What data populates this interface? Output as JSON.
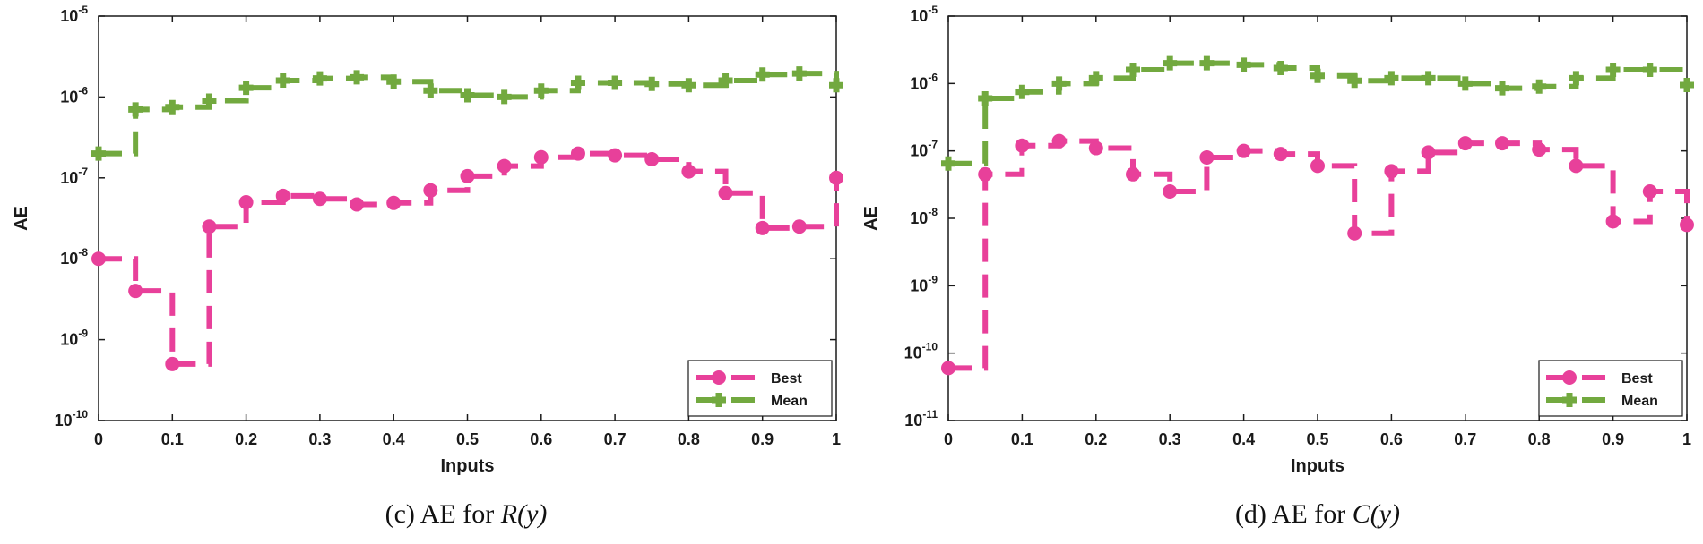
{
  "colors": {
    "best": "#e8409a",
    "mean": "#72a93f",
    "axis": "#1a1a1a"
  },
  "chart_data": [
    {
      "type": "line",
      "title": "",
      "caption_prefix": "(c)  AE for ",
      "caption_var": "R(y)",
      "xlabel": "Inputs",
      "ylabel": "AE",
      "yscale": "log",
      "xlim": [
        0,
        1
      ],
      "ylim_exp": [
        -10,
        -5
      ],
      "x_ticks": [
        "0",
        "0.1",
        "0.2",
        "0.3",
        "0.4",
        "0.5",
        "0.6",
        "0.7",
        "0.8",
        "0.9",
        "1"
      ],
      "y_tick_base": "10",
      "y_tick_exponents": [
        "-10",
        "-9",
        "-8",
        "-7",
        "-6",
        "-5"
      ],
      "legend": {
        "position": "bottom-right",
        "entries": [
          "Best",
          "Mean"
        ]
      },
      "x": [
        0,
        0.05,
        0.1,
        0.15,
        0.2,
        0.25,
        0.3,
        0.35,
        0.4,
        0.45,
        0.5,
        0.55,
        0.6,
        0.65,
        0.7,
        0.75,
        0.8,
        0.85,
        0.9,
        0.95,
        1
      ],
      "series": [
        {
          "name": "Best",
          "values": [
            1e-08,
            4e-09,
            5e-10,
            2.5e-08,
            5e-08,
            6e-08,
            5.5e-08,
            4.7e-08,
            4.9e-08,
            7e-08,
            1.05e-07,
            1.4e-07,
            1.8e-07,
            2e-07,
            1.9e-07,
            1.7e-07,
            1.2e-07,
            6.5e-08,
            2.4e-08,
            2.5e-08,
            1e-07
          ]
        },
        {
          "name": "Mean",
          "values": [
            2e-07,
            7e-07,
            7.5e-07,
            9e-07,
            1.3e-06,
            1.6e-06,
            1.7e-06,
            1.75e-06,
            1.55e-06,
            1.2e-06,
            1.05e-06,
            1e-06,
            1.2e-06,
            1.5e-06,
            1.5e-06,
            1.45e-06,
            1.4e-06,
            1.6e-06,
            1.9e-06,
            1.95e-06,
            1.4e-06
          ]
        }
      ]
    },
    {
      "type": "line",
      "title": "",
      "caption_prefix": "(d) AE for ",
      "caption_var": "C(y)",
      "xlabel": "Inputs",
      "ylabel": "AE",
      "yscale": "log",
      "xlim": [
        0,
        1
      ],
      "ylim_exp": [
        -11,
        -5
      ],
      "x_ticks": [
        "0",
        "0.1",
        "0.2",
        "0.3",
        "0.4",
        "0.5",
        "0.6",
        "0.7",
        "0.8",
        "0.9",
        "1"
      ],
      "y_tick_base": "10",
      "y_tick_exponents": [
        "-11",
        "-10",
        "-9",
        "-8",
        "-7",
        "-6",
        "-5"
      ],
      "legend": {
        "position": "bottom-right",
        "entries": [
          "Best",
          "Mean"
        ]
      },
      "x": [
        0,
        0.05,
        0.1,
        0.15,
        0.2,
        0.25,
        0.3,
        0.35,
        0.4,
        0.45,
        0.5,
        0.55,
        0.6,
        0.65,
        0.7,
        0.75,
        0.8,
        0.85,
        0.9,
        0.95,
        1
      ],
      "series": [
        {
          "name": "Best",
          "values": [
            6e-11,
            4.5e-08,
            1.2e-07,
            1.4e-07,
            1.1e-07,
            4.5e-08,
            2.5e-08,
            8e-08,
            1e-07,
            9e-08,
            6e-08,
            6e-09,
            5e-08,
            9.5e-08,
            1.3e-07,
            1.3e-07,
            1.05e-07,
            6e-08,
            9e-09,
            2.5e-08,
            8e-09
          ]
        },
        {
          "name": "Mean",
          "values": [
            6.5e-08,
            6e-07,
            7.5e-07,
            1e-06,
            1.2e-06,
            1.6e-06,
            2e-06,
            2e-06,
            1.9e-06,
            1.7e-06,
            1.3e-06,
            1.1e-06,
            1.2e-06,
            1.2e-06,
            1e-06,
            8.5e-07,
            9e-07,
            1.2e-06,
            1.6e-06,
            1.6e-06,
            9.5e-07
          ]
        }
      ]
    }
  ]
}
